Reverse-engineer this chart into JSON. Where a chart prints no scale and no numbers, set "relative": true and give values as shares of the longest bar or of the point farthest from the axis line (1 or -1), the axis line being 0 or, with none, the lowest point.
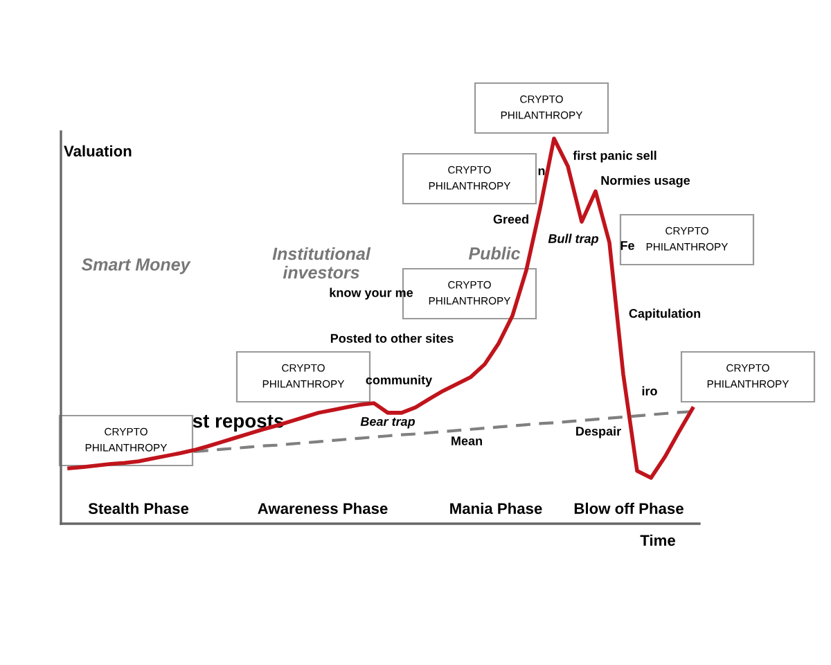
{
  "chart_data": {
    "type": "line",
    "relative": true,
    "xlabel": "Time",
    "ylabel": "Valuation",
    "grid": false,
    "legend": false,
    "marker": "none",
    "line_style": "solid",
    "categories": [
      null,
      null,
      null,
      null,
      null,
      null,
      null,
      null,
      null,
      null,
      null,
      null,
      null,
      null,
      null,
      null,
      null,
      null,
      null,
      null,
      null,
      null,
      null,
      null,
      null,
      null,
      null,
      null,
      null,
      null,
      null,
      null,
      null,
      null,
      null,
      null,
      null,
      null,
      null,
      null,
      null,
      null,
      null,
      null,
      null,
      null
    ],
    "series": [
      {
        "color": "#c0141c",
        "values": [
          0.144,
          0.147,
          0.151,
          0.155,
          0.158,
          0.162,
          0.169,
          0.176,
          0.183,
          0.191,
          0.201,
          0.212,
          0.223,
          0.234,
          0.245,
          0.255,
          0.266,
          0.277,
          0.288,
          0.295,
          0.302,
          0.309,
          0.313,
          0.288,
          0.288,
          0.302,
          0.324,
          0.345,
          0.363,
          0.381,
          0.414,
          0.468,
          0.54,
          0.658,
          0.82,
          1.0,
          0.928,
          0.784,
          0.863,
          0.73,
          0.388,
          0.137,
          0.119,
          0.173,
          0.237,
          0.299
        ]
      },
      {
        "color": "#808080",
        "line_style": "dashed",
        "values": [
          null,
          null,
          null,
          null,
          null,
          null,
          null,
          null,
          null,
          0.187,
          0.19,
          0.193,
          0.196,
          0.199,
          0.202,
          0.204,
          0.207,
          0.21,
          0.213,
          0.216,
          0.219,
          0.222,
          0.225,
          0.228,
          0.231,
          0.233,
          0.236,
          0.239,
          0.242,
          0.245,
          0.248,
          0.251,
          0.254,
          0.257,
          0.26,
          0.262,
          0.265,
          0.268,
          0.271,
          0.274,
          0.277,
          0.28,
          0.283,
          0.286,
          0.289,
          0.291
        ]
      }
    ],
    "annotations": [
      "Smart Money",
      "Institutional\ninvestors",
      "Public",
      "st reposts",
      "community",
      "know your me",
      "Posted to other sites",
      "Bear trap",
      "Mean",
      "Greed",
      "n",
      "first panic sell",
      "Normies usage",
      "Bull trap",
      "Fe",
      "Capitulation",
      "iro",
      "Despair",
      "Stealth Phase",
      "Awareness Phase",
      "Mania Phase",
      "Blow off Phase",
      "CRYPTO\nPHILANTHROPY",
      "CRYPTO\nPHILANTHROPY",
      "CRYPTO\nPHILANTHROPY",
      "CRYPTO\nPHILANTHROPY",
      "CRYPTO\nPHILANTHROPY",
      "CRYPTO\nPHILANTHROPY",
      "CRYPTO\nPHILANTHROPY"
    ]
  }
}
